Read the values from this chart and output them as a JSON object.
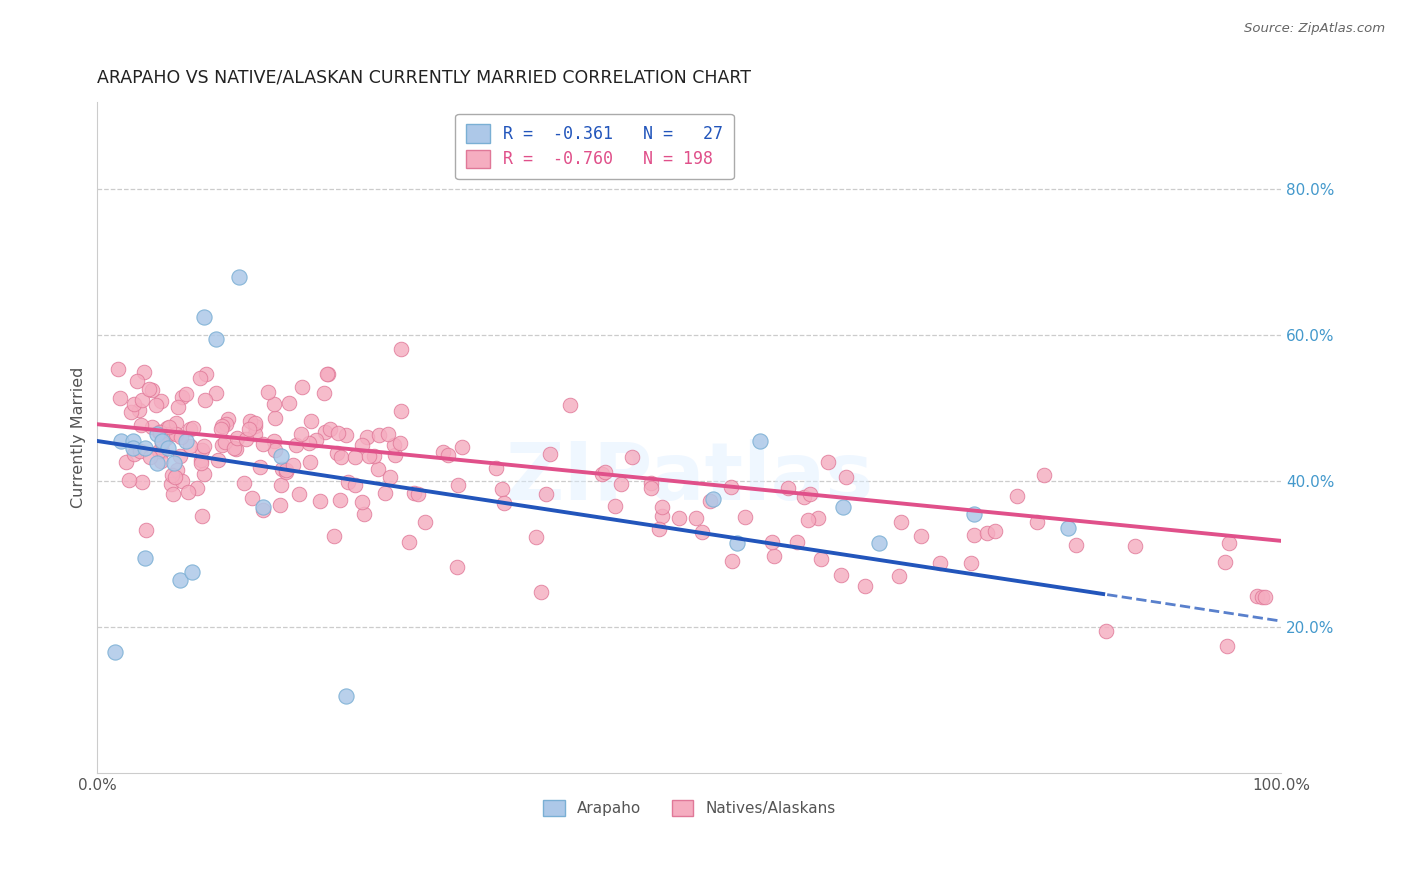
{
  "title": "ARAPAHO VS NATIVE/ALASKAN CURRENTLY MARRIED CORRELATION CHART",
  "source": "Source: ZipAtlas.com",
  "ylabel": "Currently Married",
  "arapaho_color": "#adc8e8",
  "arapaho_edge": "#7aafd4",
  "native_color": "#f5adc0",
  "native_edge": "#e07898",
  "blue_line_color": "#2255bb",
  "pink_line_color": "#e0508a",
  "legend_text_blue": "R =  -0.361   N =   27",
  "legend_text_pink": "R =  -0.760   N = 198",
  "right_ytick_vals": [
    0.2,
    0.4,
    0.6,
    0.8
  ],
  "right_yticklabels": [
    "20.0%",
    "40.0%",
    "60.0%",
    "80.0%"
  ],
  "background_color": "#ffffff",
  "grid_color": "#cccccc",
  "watermark": "ZIPatlas",
  "xlim": [
    0.0,
    1.0
  ],
  "ylim": [
    0.0,
    0.92
  ],
  "blue_line_x0": 0.0,
  "blue_line_y0": 0.455,
  "blue_line_x1": 0.85,
  "blue_line_y1": 0.245,
  "blue_line_x_dash_end": 1.0,
  "pink_line_x0": 0.0,
  "pink_line_y0": 0.478,
  "pink_line_x1": 1.0,
  "pink_line_y1": 0.318
}
